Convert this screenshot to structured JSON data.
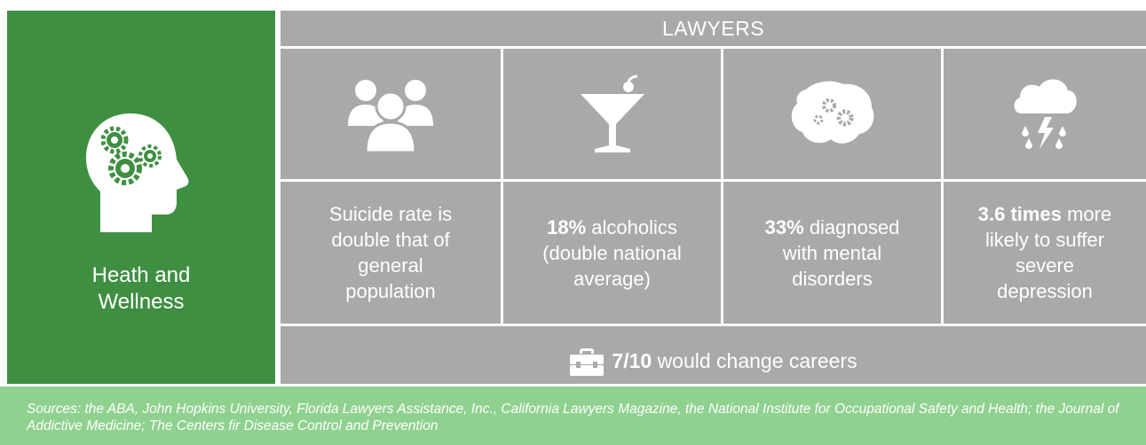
{
  "left_panel": {
    "label": "Heath and Wellness"
  },
  "header": {
    "title": "LAWYERS"
  },
  "cells": [
    {
      "bold": "",
      "text": "Suicide rate is double that of general population"
    },
    {
      "bold": "18%",
      "text": "alcoholics (double national average)"
    },
    {
      "bold": "33%",
      "text": "diagnosed with mental disorders"
    },
    {
      "bold": "3.6 times",
      "text": "more likely to suffer severe depression"
    }
  ],
  "footer_stat": {
    "bold": "7/10",
    "text": "would change careers"
  },
  "sources": "Sources: the ABA, John Hopkins University, Florida Lawyers Assistance, Inc., California Lawyers Magazine, the National Institute for Occupational Safety and Health; the Journal of Addictive Medicine; The Centers fir Disease Control and Prevention"
}
